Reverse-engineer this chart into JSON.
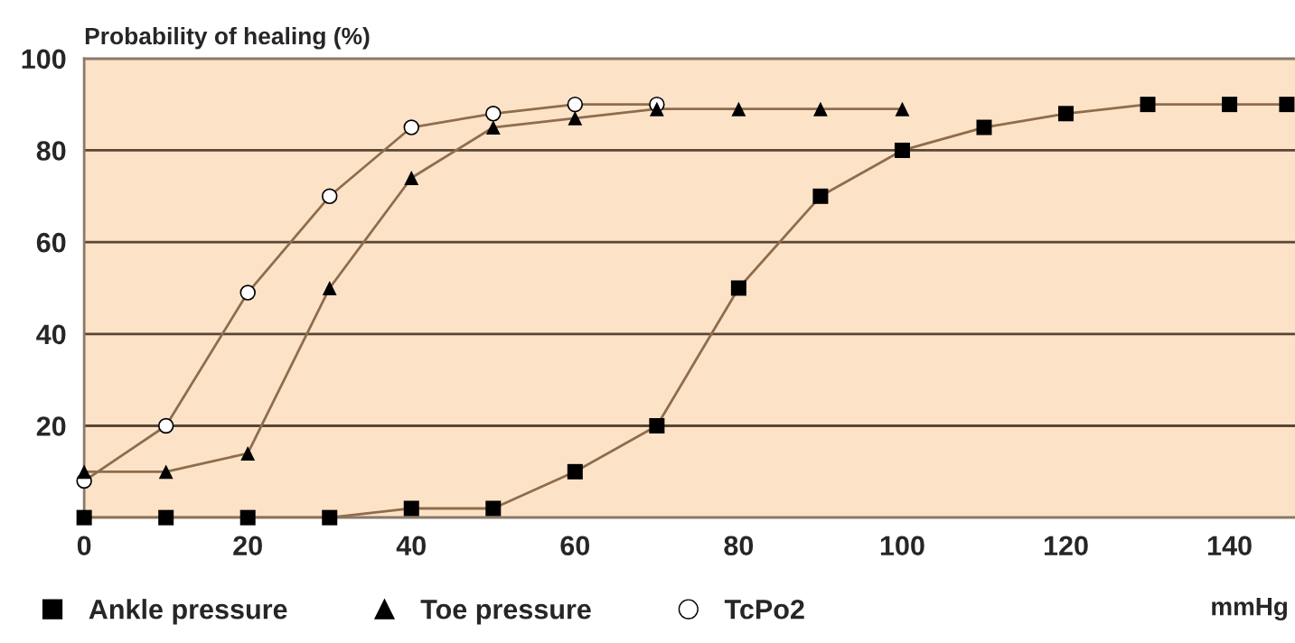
{
  "chart_data": {
    "type": "line",
    "ylabel": "Probability of healing (%)",
    "xlabel": "mmHg",
    "series": [
      {
        "name": "Ankle pressure",
        "color": "#000000",
        "marker": "square",
        "x": [
          0,
          10,
          20,
          30,
          40,
          50,
          60,
          70,
          80,
          90,
          100,
          110,
          120,
          130,
          140,
          147
        ],
        "values": [
          0,
          0,
          0,
          0,
          2,
          2,
          10,
          20,
          50,
          70,
          80,
          85,
          88,
          90,
          90,
          90
        ]
      },
      {
        "name": "Toe pressure",
        "color": "#000000",
        "marker": "triangle",
        "x": [
          0,
          10,
          20,
          30,
          40,
          50,
          60,
          70,
          80,
          90,
          100
        ],
        "values": [
          10,
          10,
          14,
          50,
          74,
          85,
          87,
          89,
          89,
          89,
          89
        ]
      },
      {
        "name": "TcPo2",
        "color": "#000000",
        "marker": "circle",
        "x": [
          0,
          10,
          20,
          30,
          40,
          50,
          60,
          70
        ],
        "values": [
          8,
          20,
          49,
          70,
          85,
          88,
          90,
          90
        ]
      }
    ],
    "xlim": [
      0,
      148
    ],
    "xticks": [
      0,
      20,
      40,
      60,
      80,
      100,
      120,
      140
    ],
    "ylim": [
      0,
      100
    ],
    "yticks": [
      {
        "value": 0,
        "label": null
      },
      20,
      40,
      60,
      80,
      100
    ],
    "grid": "y",
    "legend": "bottom"
  }
}
